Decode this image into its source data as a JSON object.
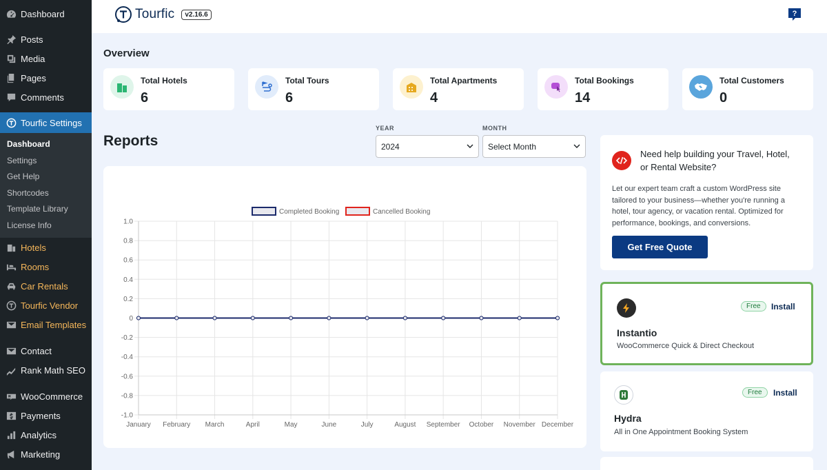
{
  "sidebar": {
    "items": [
      {
        "label": "Dashboard",
        "icon": "dashboard-icon"
      },
      {
        "label": "Posts",
        "icon": "pin-icon"
      },
      {
        "label": "Media",
        "icon": "media-icon"
      },
      {
        "label": "Pages",
        "icon": "pages-icon"
      },
      {
        "label": "Comments",
        "icon": "comments-icon"
      },
      {
        "label": "Tourfic Settings",
        "icon": "tourfic-icon"
      },
      {
        "label": "Hotels",
        "icon": "building-icon"
      },
      {
        "label": "Rooms",
        "icon": "bed-icon"
      },
      {
        "label": "Car Rentals",
        "icon": "car-icon"
      },
      {
        "label": "Tourfic Vendor",
        "icon": "tourfic-icon"
      },
      {
        "label": "Email Templates",
        "icon": "email-icon"
      },
      {
        "label": "Contact",
        "icon": "envelope-icon"
      },
      {
        "label": "Rank Math SEO",
        "icon": "chart-icon"
      },
      {
        "label": "WooCommerce",
        "icon": "woo-icon"
      },
      {
        "label": "Payments",
        "icon": "dollar-icon"
      },
      {
        "label": "Analytics",
        "icon": "bar-chart-icon"
      },
      {
        "label": "Marketing",
        "icon": "megaphone-icon"
      }
    ],
    "submenu": [
      "Dashboard",
      "Settings",
      "Get Help",
      "Shortcodes",
      "Template Library",
      "License Info"
    ]
  },
  "header": {
    "brand": "Tourfic",
    "version": "v2.16.6",
    "help_icon": "question-icon"
  },
  "overview": {
    "title": "Overview",
    "stats": [
      {
        "label": "Total Hotels",
        "value": "6",
        "icon": "hotel-icon",
        "color": "#2bb673",
        "bg": "#dff5ea"
      },
      {
        "label": "Total Tours",
        "value": "6",
        "icon": "tour-route-icon",
        "color": "#2f6fd0",
        "bg": "#e1ecfb"
      },
      {
        "label": "Total Apartments",
        "value": "4",
        "icon": "apartment-icon",
        "color": "#e6a91f",
        "bg": "#fdf1cf"
      },
      {
        "label": "Total Bookings",
        "value": "14",
        "icon": "booking-icon",
        "color": "#b44fd6",
        "bg": "#f3defa"
      },
      {
        "label": "Total Customers",
        "value": "0",
        "icon": "handshake-icon",
        "color": "#ffffff",
        "bg": "#5aa5dc"
      }
    ]
  },
  "reports": {
    "title": "Reports",
    "year_label": "YEAR",
    "year_value": "2024",
    "month_label": "MONTH",
    "month_value": "Select Month"
  },
  "chart_data": {
    "type": "line",
    "categories": [
      "January",
      "February",
      "March",
      "April",
      "May",
      "June",
      "July",
      "August",
      "September",
      "October",
      "November",
      "December"
    ],
    "series": [
      {
        "name": "Completed Booking",
        "values": [
          0,
          0,
          0,
          0,
          0,
          0,
          0,
          0,
          0,
          0,
          0,
          0
        ],
        "color": "#1b2a6b"
      },
      {
        "name": "Cancelled Booking",
        "values": [
          0,
          0,
          0,
          0,
          0,
          0,
          0,
          0,
          0,
          0,
          0,
          0
        ],
        "color": "#e0241d"
      }
    ],
    "ylim": [
      -1.0,
      1.0
    ],
    "yticks": [
      "1.0",
      "0.8",
      "0.6",
      "0.4",
      "0.2",
      "0",
      "-0.2",
      "-0.4",
      "-0.6",
      "-0.8",
      "-1.0"
    ],
    "grid": true,
    "legend": "top"
  },
  "quote": {
    "heading": "Need help building your Travel, Hotel, or Rental Website?",
    "body": "Let our expert team craft a custom WordPress site tailored to your business—whether you're running a hotel, tour agency, or vacation rental. Optimized for performance, bookings, and conversions.",
    "button": "Get Free Quote",
    "icon": "code-icon"
  },
  "plugins": [
    {
      "name": "Instantio",
      "desc": "WooCommerce Quick & Direct Checkout",
      "badge": "Free",
      "action": "Install",
      "icon": "lightning-icon"
    },
    {
      "name": "Hydra",
      "desc": "All in One Appointment Booking System",
      "badge": "Free",
      "action": "Install",
      "icon": "hydra-icon"
    }
  ]
}
